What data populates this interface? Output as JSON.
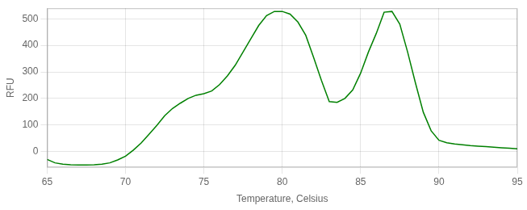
{
  "chart_data": {
    "type": "line",
    "xlabel": "Temperature, Celsius",
    "ylabel": "RFU",
    "x": [
      65.0,
      65.5,
      66.0,
      66.5,
      67.0,
      67.5,
      68.0,
      68.5,
      69.0,
      69.5,
      70.0,
      70.5,
      71.0,
      71.5,
      72.0,
      72.5,
      73.0,
      73.5,
      74.0,
      74.5,
      75.0,
      75.5,
      76.0,
      76.5,
      77.0,
      77.5,
      78.0,
      78.5,
      79.0,
      79.5,
      80.0,
      80.5,
      81.0,
      81.5,
      82.0,
      82.5,
      83.0,
      83.5,
      84.0,
      84.5,
      85.0,
      85.5,
      86.0,
      86.5,
      87.0,
      87.5,
      88.0,
      88.5,
      89.0,
      89.5,
      90.0,
      90.5,
      91.0,
      91.5,
      92.0,
      92.5,
      93.0,
      93.5,
      94.0,
      94.5,
      95.0
    ],
    "values": [
      -30,
      -43,
      -48,
      -50,
      -51,
      -51,
      -50,
      -48,
      -43,
      -32,
      -18,
      5,
      32,
      65,
      98,
      135,
      162,
      182,
      200,
      212,
      218,
      228,
      252,
      285,
      325,
      375,
      425,
      475,
      512,
      528,
      528,
      518,
      488,
      438,
      355,
      268,
      188,
      185,
      200,
      232,
      295,
      375,
      445,
      525,
      528,
      480,
      375,
      258,
      148,
      78,
      42,
      33,
      28,
      25,
      22,
      20,
      18,
      16,
      14,
      12,
      10
    ],
    "color": "#008000",
    "xlim": [
      65,
      95
    ],
    "ylim": [
      -60,
      540
    ],
    "xticks": [
      65,
      70,
      75,
      80,
      85,
      90,
      95
    ],
    "yticks": [
      0,
      100,
      200,
      300,
      400,
      500
    ],
    "grid": true
  }
}
